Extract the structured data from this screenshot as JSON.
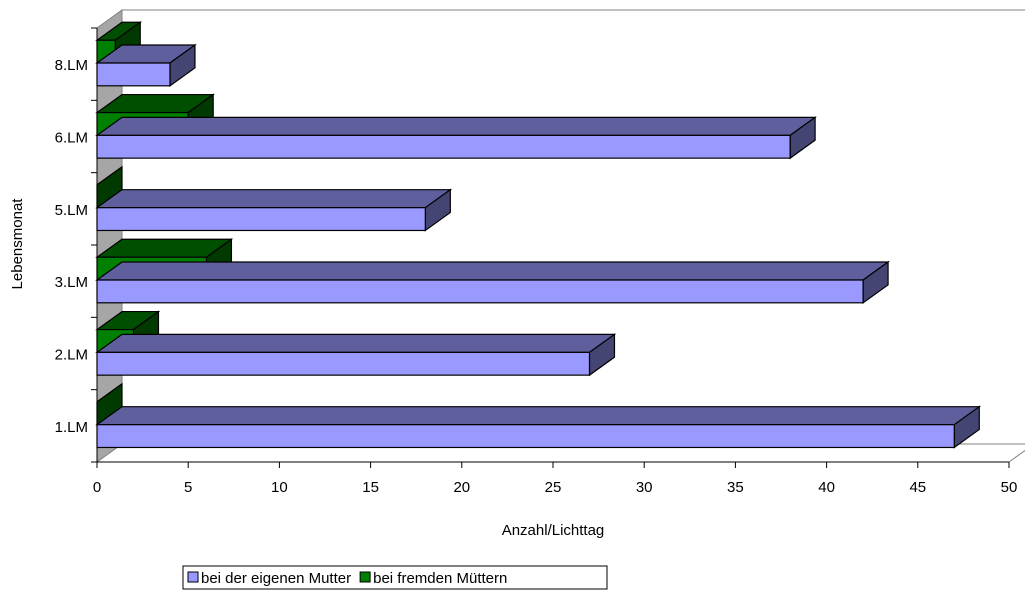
{
  "chart_data": {
    "type": "bar",
    "orientation": "horizontal",
    "three_d": true,
    "categories": [
      "1.LM",
      "2.LM",
      "3.LM",
      "5.LM",
      "6.LM",
      "8.LM"
    ],
    "series": [
      {
        "name": "bei der eigenen Mutter",
        "values": [
          47,
          27,
          42,
          18,
          38,
          4
        ],
        "color": "#9999ff"
      },
      {
        "name": "bei fremden Müttern",
        "values": [
          0,
          2,
          6,
          0,
          5,
          1
        ],
        "color": "#008000"
      }
    ],
    "xlabel": "Anzahl/Lichttag",
    "ylabel": "Lebensmonat",
    "xlim": [
      0,
      50
    ],
    "xticks": [
      "0",
      "5",
      "10",
      "15",
      "20",
      "25",
      "30",
      "35",
      "40",
      "45",
      "50"
    ],
    "grid": false,
    "legend_position": "bottom"
  }
}
